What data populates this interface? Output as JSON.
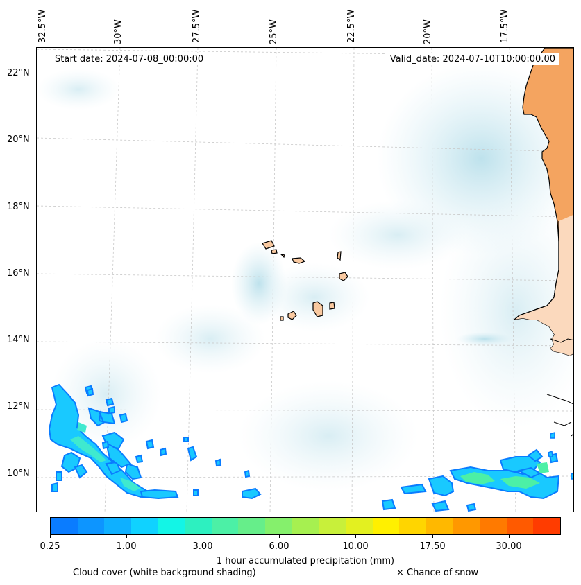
{
  "map": {
    "start_date": "Start date: 2024-07-08_00:00:00",
    "valid_date": "Valid_date: 2024-07-10T10:00:00.00",
    "lon_labels": [
      "32.5°W",
      "30°W",
      "27.5°W",
      "25°W",
      "22.5°W",
      "20°W",
      "17.5°W"
    ],
    "lat_labels": [
      "22°N",
      "20°N",
      "18°N",
      "16°N",
      "14°N",
      "12°N",
      "10°N"
    ],
    "land_color": "#f4a460",
    "island_color": "#f9c9a0"
  },
  "colorbar": {
    "tick_labels": [
      "0.25",
      "1.00",
      "3.00",
      "6.00",
      "10.00",
      "17.50",
      "30.00"
    ],
    "colors": [
      "#0a7cff",
      "#0d95ff",
      "#0fb0ff",
      "#10d2ff",
      "#13f5e6",
      "#2df0c0",
      "#4cf0a6",
      "#66ee8a",
      "#85f06c",
      "#a6f050",
      "#c8f03a",
      "#e3f020",
      "#fff000",
      "#ffd500",
      "#ffb800",
      "#ff9800",
      "#ff7a00",
      "#ff5a00",
      "#ff3c00"
    ],
    "label": "1 hour accumulated precipitation (mm)"
  },
  "legend": {
    "cloud_cover": "Cloud cover (white background shading)",
    "snow": "× Chance of snow"
  }
}
